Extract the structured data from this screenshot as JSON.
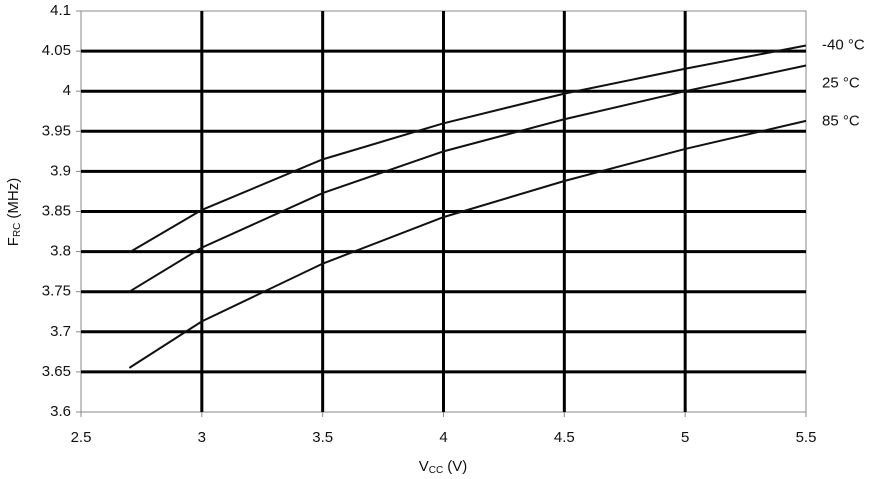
{
  "chart_data": {
    "type": "line",
    "x_label": {
      "symbol": "V",
      "subscript": "CC",
      "unit": "(V)"
    },
    "y_label": {
      "symbol": "F",
      "subscript": "RC",
      "unit": "(MHz)"
    },
    "x": [
      2.7,
      3.0,
      3.5,
      4.0,
      4.5,
      5.0,
      5.5
    ],
    "series": [
      {
        "name": "-40 °C",
        "color": "#111111",
        "values": [
          3.799,
          3.852,
          3.915,
          3.96,
          3.997,
          4.028,
          4.057
        ]
      },
      {
        "name": "25 °C",
        "color": "#111111",
        "values": [
          3.75,
          3.805,
          3.873,
          3.925,
          3.965,
          4.0,
          4.032
        ]
      },
      {
        "name": "85 °C",
        "color": "#111111",
        "values": [
          3.655,
          3.713,
          3.785,
          3.843,
          3.888,
          3.928,
          3.963
        ]
      }
    ],
    "xlim": [
      2.5,
      5.5
    ],
    "xticks": [
      2.5,
      3,
      3.5,
      4,
      4.5,
      5,
      5.5
    ],
    "ylim": [
      3.6,
      4.1
    ],
    "yticks": [
      3.6,
      3.65,
      3.7,
      3.75,
      3.8,
      3.85,
      3.9,
      3.95,
      4,
      4.05,
      4.1
    ],
    "grid": true
  }
}
